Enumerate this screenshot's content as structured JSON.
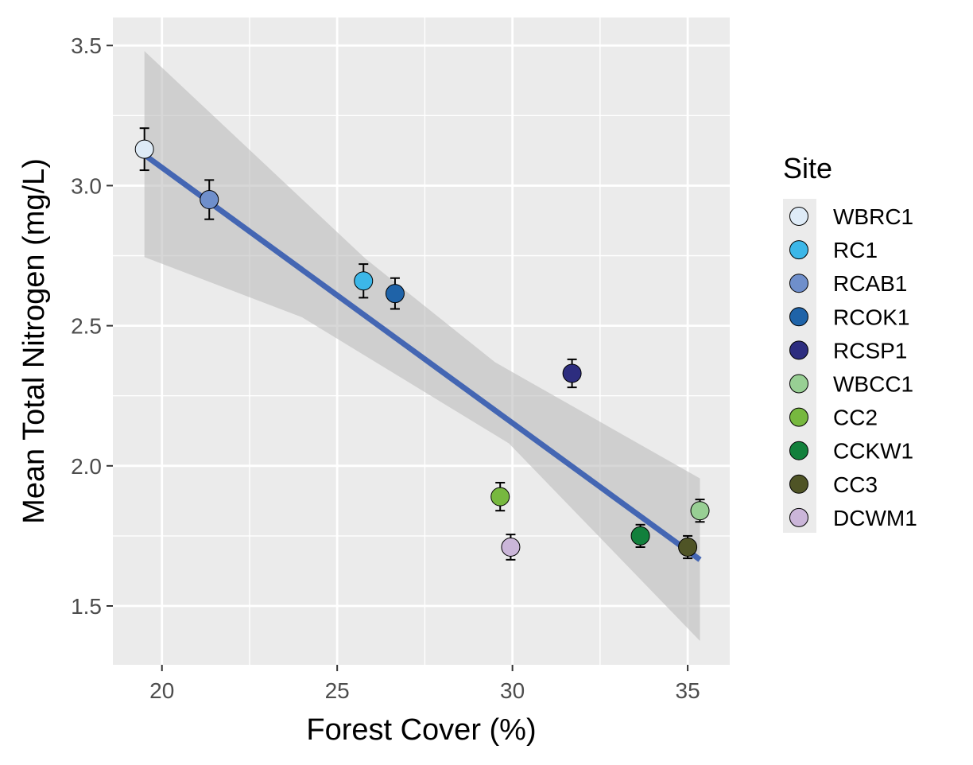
{
  "chart_data": {
    "type": "scatter",
    "title": "",
    "xlabel": "Forest Cover (%)",
    "ylabel": "Mean Total Nitrogen (mg/L)",
    "xlim": [
      18.6,
      36.2
    ],
    "ylim": [
      1.29,
      3.6
    ],
    "x_ticks": [
      "20",
      "25",
      "30",
      "35"
    ],
    "y_ticks": [
      "1.5",
      "2.0",
      "2.5",
      "3.0",
      "3.5"
    ],
    "grid": true,
    "legend": {
      "title": "Site",
      "placement": "right"
    },
    "points": [
      {
        "site": "WBRC1",
        "x": 19.5,
        "y": 3.13,
        "err": 0.075,
        "color": "#deebf7"
      },
      {
        "site": "RCAB1",
        "x": 21.35,
        "y": 2.95,
        "err": 0.07,
        "color": "#6f8fcb"
      },
      {
        "site": "RC1",
        "x": 25.75,
        "y": 2.66,
        "err": 0.06,
        "color": "#3cb7e8"
      },
      {
        "site": "RCOK1",
        "x": 26.65,
        "y": 2.615,
        "err": 0.055,
        "color": "#1f63a8"
      },
      {
        "site": "RCSP1",
        "x": 31.7,
        "y": 2.33,
        "err": 0.05,
        "color": "#2d2d7f"
      },
      {
        "site": "CC2",
        "x": 29.65,
        "y": 1.89,
        "err": 0.05,
        "color": "#77b83f"
      },
      {
        "site": "DCWM1",
        "x": 29.95,
        "y": 1.71,
        "err": 0.045,
        "color": "#cbb6d9"
      },
      {
        "site": "CCKW1",
        "x": 33.65,
        "y": 1.75,
        "err": 0.04,
        "color": "#12803c"
      },
      {
        "site": "CC3",
        "x": 35.0,
        "y": 1.71,
        "err": 0.04,
        "color": "#4f5426"
      },
      {
        "site": "WBCC1",
        "x": 35.35,
        "y": 1.84,
        "err": 0.04,
        "color": "#98cf94"
      }
    ],
    "legend_order": [
      "WBRC1",
      "RC1",
      "RCAB1",
      "RCOK1",
      "RCSP1",
      "WBCC1",
      "CC2",
      "CCKW1",
      "CC3",
      "DCWM1"
    ],
    "fit": {
      "x_start": 19.5,
      "y_start": 3.11,
      "x_end": 35.35,
      "y_end": 1.665,
      "color": "#4466b3",
      "band_upper": [
        [
          19.5,
          3.48
        ],
        [
          25.8,
          2.74
        ],
        [
          29.5,
          2.37
        ],
        [
          35.35,
          1.955
        ]
      ],
      "band_lower": [
        [
          19.5,
          2.745
        ],
        [
          24.0,
          2.53
        ],
        [
          29.9,
          2.08
        ],
        [
          35.35,
          1.375
        ]
      ]
    },
    "panel_color": "#ebebeb",
    "band_color": "#bdbdbd"
  }
}
